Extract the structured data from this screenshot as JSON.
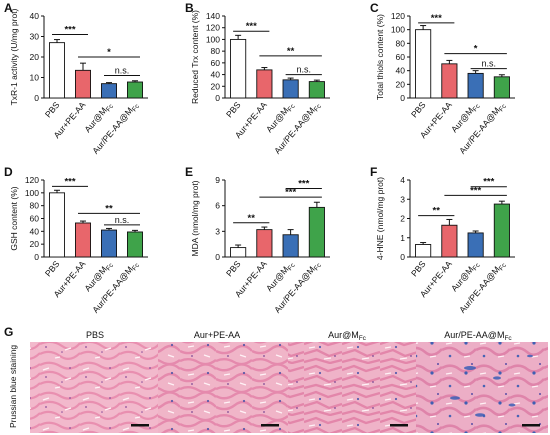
{
  "figure_g": {
    "letter": "G",
    "side_label": "Prussian blue  staining",
    "images": [
      {
        "label": "PBS"
      },
      {
        "label": "Aur+PE-AA"
      },
      {
        "label": "Aur@M",
        "sub": "Fc"
      },
      {
        "label": "Aur/PE-AA@M",
        "sub": "Fc"
      }
    ]
  },
  "colors": {
    "PBS": "#ffffff",
    "Aur+PE-AA": "#e8666b",
    "Aur@MFc": "#3a6fb6",
    "Aur/PE-AA@MFc": "#3fa34a"
  },
  "chart_data": [
    {
      "letter": "A",
      "type": "bar",
      "categories": [
        "PBS",
        "Aur+PE-AA",
        "Aur@MFc",
        "Aur/PE-AA@MFc"
      ],
      "values": [
        27,
        13.5,
        7,
        7.8
      ],
      "errors": [
        1.5,
        3.5,
        0.5,
        0.6
      ],
      "ylabel": "TxR-1 activity (U/mg prot)",
      "ylim": [
        0,
        40
      ],
      "yticks": [
        0,
        10,
        20,
        30,
        40
      ],
      "sig": [
        {
          "from": 0,
          "to": 1,
          "text": "***",
          "y": 31
        },
        {
          "from": 1,
          "to": 3,
          "text": "*",
          "y": 20
        },
        {
          "from": 2,
          "to": 3,
          "text": "n.s.",
          "y": 11
        }
      ]
    },
    {
      "letter": "B",
      "type": "bar",
      "categories": [
        "PBS",
        "Aur+PE-AA",
        "Aur@MFc",
        "Aur/PE-AA@MFc"
      ],
      "values": [
        100,
        48,
        31,
        28
      ],
      "errors": [
        7,
        4,
        3,
        2.5
      ],
      "ylabel": "Reduced Trx content (%)",
      "ylim": [
        0,
        140
      ],
      "yticks": [
        0,
        20,
        40,
        60,
        80,
        100,
        120,
        140
      ],
      "sig": [
        {
          "from": 0,
          "to": 1,
          "text": "***",
          "y": 114
        },
        {
          "from": 1,
          "to": 3,
          "text": "**",
          "y": 72
        },
        {
          "from": 2,
          "to": 3,
          "text": "n.s.",
          "y": 40
        }
      ]
    },
    {
      "letter": "C",
      "type": "bar",
      "categories": [
        "PBS",
        "Aur+PE-AA",
        "Aur@MFc",
        "Aur/PE-AA@MFc"
      ],
      "values": [
        100,
        50,
        36,
        31
      ],
      "errors": [
        6,
        5,
        4,
        3
      ],
      "ylabel": "Total thiols content (%)",
      "ylim": [
        0,
        120
      ],
      "yticks": [
        0,
        20,
        40,
        60,
        80,
        100,
        120
      ],
      "sig": [
        {
          "from": 0,
          "to": 1,
          "text": "***",
          "y": 110
        },
        {
          "from": 1,
          "to": 3,
          "text": "*",
          "y": 65
        },
        {
          "from": 2,
          "to": 3,
          "text": "n.s.",
          "y": 43
        }
      ]
    },
    {
      "letter": "D",
      "type": "bar",
      "categories": [
        "PBS",
        "Aur+PE-AA",
        "Aur@MFc",
        "Aur/PE-AA@MFc"
      ],
      "values": [
        100,
        53,
        42,
        39
      ],
      "errors": [
        4,
        3,
        2.5,
        2.5
      ],
      "ylabel": "GSH content (%)",
      "ylim": [
        0,
        120
      ],
      "yticks": [
        0,
        20,
        40,
        60,
        80,
        100,
        120
      ],
      "sig": [
        {
          "from": 0,
          "to": 1,
          "text": "***",
          "y": 110
        },
        {
          "from": 1,
          "to": 3,
          "text": "**",
          "y": 68
        },
        {
          "from": 2,
          "to": 3,
          "text": "n.s.",
          "y": 50
        }
      ]
    },
    {
      "letter": "E",
      "type": "bar",
      "categories": [
        "PBS",
        "Aur+PE-AA",
        "Aur@MFc",
        "Aur/PE-AA@MFc"
      ],
      "values": [
        1.1,
        3.2,
        2.6,
        5.8
      ],
      "errors": [
        0.3,
        0.3,
        0.6,
        0.6
      ],
      "ylabel": "MDA (nmol/mg prot)",
      "ylim": [
        0,
        9
      ],
      "yticks": [
        0,
        3,
        6,
        9
      ],
      "sig": [
        {
          "from": 0,
          "to": 1,
          "text": "**",
          "y": 4.0
        },
        {
          "from": 1,
          "to": 3,
          "text": "***",
          "y": 7.0
        },
        {
          "from": 2,
          "to": 3,
          "text": "***",
          "y": 8.0
        }
      ]
    },
    {
      "letter": "F",
      "type": "bar",
      "categories": [
        "PBS",
        "Aur+PE-AA",
        "Aur@MFc",
        "Aur/PE-AA@MFc"
      ],
      "values": [
        0.65,
        1.65,
        1.25,
        2.75
      ],
      "errors": [
        0.1,
        0.3,
        0.1,
        0.15
      ],
      "ylabel": "4-HNE (nmol/mg prot)",
      "ylim": [
        0,
        4
      ],
      "yticks": [
        0,
        1,
        2,
        3,
        4
      ],
      "sig": [
        {
          "from": 0,
          "to": 1,
          "text": "**",
          "y": 2.15
        },
        {
          "from": 1,
          "to": 3,
          "text": "***",
          "y": 3.2
        },
        {
          "from": 2,
          "to": 3,
          "text": "***",
          "y": 3.65
        }
      ]
    }
  ]
}
